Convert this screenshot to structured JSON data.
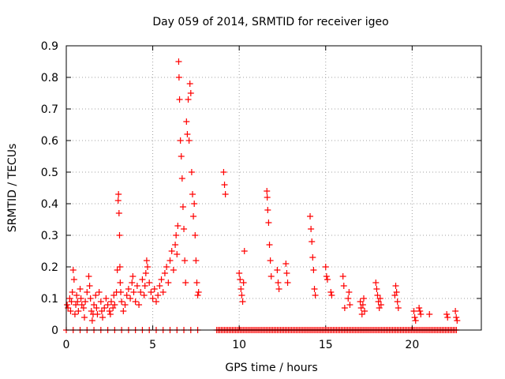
{
  "chart_data": {
    "type": "scatter",
    "title": "Day 059 of 2014, SRMTID for receiver igeo",
    "xlabel": "GPS time / hours",
    "ylabel": "SRMTID / TECUs",
    "xlim": [
      0,
      24
    ],
    "ylim": [
      0,
      0.9
    ],
    "xticks": [
      0,
      5,
      10,
      15,
      20
    ],
    "xtick_labels": [
      "0",
      "5",
      "10",
      "15",
      "20"
    ],
    "yticks": [
      0,
      0.1,
      0.2,
      0.3,
      0.4,
      0.5,
      0.6,
      0.7,
      0.8,
      0.9
    ],
    "ytick_labels": [
      "0",
      "0.1",
      "0.2",
      "0.3",
      "0.4",
      "0.5",
      "0.6",
      "0.7",
      "0.8",
      "0.9"
    ],
    "grid": true,
    "marker": "+",
    "color": "#ff0000",
    "series": [
      {
        "name": "SRMTID",
        "points": [
          [
            0.05,
            0.08
          ],
          [
            0.1,
            0.07
          ],
          [
            0.2,
            0.1
          ],
          [
            0.25,
            0.06
          ],
          [
            0.3,
            0.09
          ],
          [
            0.35,
            0.12
          ],
          [
            0.4,
            0.19
          ],
          [
            0.45,
            0.16
          ],
          [
            0.5,
            0.05
          ],
          [
            0.55,
            0.08
          ],
          [
            0.6,
            0.11
          ],
          [
            0.65,
            0.09
          ],
          [
            0.7,
            0.06
          ],
          [
            0.8,
            0.13
          ],
          [
            0.85,
            0.1
          ],
          [
            0.9,
            0.08
          ],
          [
            1.0,
            0.07
          ],
          [
            1.05,
            0.04
          ],
          [
            1.1,
            0.09
          ],
          [
            1.2,
            0.12
          ],
          [
            1.3,
            0.17
          ],
          [
            1.35,
            0.14
          ],
          [
            1.4,
            0.1
          ],
          [
            1.45,
            0.06
          ],
          [
            1.5,
            0.03
          ],
          [
            1.55,
            0.05
          ],
          [
            1.6,
            0.08
          ],
          [
            1.7,
            0.11
          ],
          [
            1.75,
            0.07
          ],
          [
            1.8,
            0.05
          ],
          [
            1.9,
            0.12
          ],
          [
            2.0,
            0.09
          ],
          [
            2.05,
            0.06
          ],
          [
            2.1,
            0.04
          ],
          [
            2.2,
            0.07
          ],
          [
            2.3,
            0.1
          ],
          [
            2.4,
            0.08
          ],
          [
            2.5,
            0.06
          ],
          [
            2.55,
            0.05
          ],
          [
            2.6,
            0.09
          ],
          [
            2.7,
            0.07
          ],
          [
            2.75,
            0.11
          ],
          [
            2.8,
            0.08
          ],
          [
            2.9,
            0.12
          ],
          [
            2.95,
            0.19
          ],
          [
            3.0,
            0.41
          ],
          [
            3.02,
            0.43
          ],
          [
            3.05,
            0.37
          ],
          [
            3.08,
            0.3
          ],
          [
            3.1,
            0.2
          ],
          [
            3.12,
            0.15
          ],
          [
            3.15,
            0.12
          ],
          [
            3.2,
            0.09
          ],
          [
            3.3,
            0.06
          ],
          [
            3.4,
            0.08
          ],
          [
            3.5,
            0.11
          ],
          [
            3.6,
            0.13
          ],
          [
            3.7,
            0.1
          ],
          [
            3.8,
            0.15
          ],
          [
            3.85,
            0.17
          ],
          [
            3.9,
            0.12
          ],
          [
            4.0,
            0.09
          ],
          [
            4.1,
            0.14
          ],
          [
            4.2,
            0.08
          ],
          [
            4.3,
            0.12
          ],
          [
            4.4,
            0.16
          ],
          [
            4.5,
            0.11
          ],
          [
            4.55,
            0.14
          ],
          [
            4.6,
            0.18
          ],
          [
            4.65,
            0.22
          ],
          [
            4.7,
            0.2
          ],
          [
            4.8,
            0.15
          ],
          [
            4.9,
            0.12
          ],
          [
            5.0,
            0.1
          ],
          [
            5.1,
            0.13
          ],
          [
            5.2,
            0.09
          ],
          [
            5.3,
            0.11
          ],
          [
            5.4,
            0.14
          ],
          [
            5.5,
            0.16
          ],
          [
            5.6,
            0.12
          ],
          [
            5.7,
            0.18
          ],
          [
            5.8,
            0.2
          ],
          [
            5.9,
            0.15
          ],
          [
            6.0,
            0.22
          ],
          [
            6.1,
            0.25
          ],
          [
            6.2,
            0.19
          ],
          [
            6.3,
            0.27
          ],
          [
            6.35,
            0.3
          ],
          [
            6.4,
            0.24
          ],
          [
            6.45,
            0.33
          ],
          [
            6.5,
            0.85
          ],
          [
            6.52,
            0.8
          ],
          [
            6.55,
            0.73
          ],
          [
            6.6,
            0.6
          ],
          [
            6.65,
            0.55
          ],
          [
            6.7,
            0.48
          ],
          [
            6.75,
            0.39
          ],
          [
            6.8,
            0.32
          ],
          [
            6.85,
            0.22
          ],
          [
            6.9,
            0.15
          ],
          [
            6.95,
            0.66
          ],
          [
            7.0,
            0.62
          ],
          [
            7.05,
            0.73
          ],
          [
            7.1,
            0.6
          ],
          [
            7.15,
            0.78
          ],
          [
            7.2,
            0.75
          ],
          [
            7.25,
            0.5
          ],
          [
            7.3,
            0.43
          ],
          [
            7.35,
            0.36
          ],
          [
            7.4,
            0.4
          ],
          [
            7.45,
            0.3
          ],
          [
            7.5,
            0.22
          ],
          [
            7.55,
            0.15
          ],
          [
            7.6,
            0.11
          ],
          [
            7.65,
            0.12
          ],
          [
            9.1,
            0.5
          ],
          [
            9.15,
            0.46
          ],
          [
            9.2,
            0.43
          ],
          [
            10.0,
            0.18
          ],
          [
            10.05,
            0.16
          ],
          [
            10.1,
            0.13
          ],
          [
            10.15,
            0.11
          ],
          [
            10.2,
            0.09
          ],
          [
            10.25,
            0.15
          ],
          [
            10.3,
            0.25
          ],
          [
            11.6,
            0.44
          ],
          [
            11.62,
            0.42
          ],
          [
            11.65,
            0.38
          ],
          [
            11.7,
            0.34
          ],
          [
            11.75,
            0.27
          ],
          [
            11.8,
            0.22
          ],
          [
            11.85,
            0.17
          ],
          [
            12.2,
            0.19
          ],
          [
            12.25,
            0.15
          ],
          [
            12.3,
            0.13
          ],
          [
            12.7,
            0.21
          ],
          [
            12.75,
            0.18
          ],
          [
            12.8,
            0.15
          ],
          [
            14.1,
            0.36
          ],
          [
            14.15,
            0.32
          ],
          [
            14.2,
            0.28
          ],
          [
            14.25,
            0.23
          ],
          [
            14.3,
            0.19
          ],
          [
            14.35,
            0.13
          ],
          [
            14.4,
            0.11
          ],
          [
            15.0,
            0.2
          ],
          [
            15.05,
            0.17
          ],
          [
            15.1,
            0.16
          ],
          [
            15.3,
            0.12
          ],
          [
            15.35,
            0.11
          ],
          [
            16.0,
            0.17
          ],
          [
            16.05,
            0.14
          ],
          [
            16.1,
            0.07
          ],
          [
            16.3,
            0.1
          ],
          [
            16.35,
            0.12
          ],
          [
            16.4,
            0.08
          ],
          [
            17.0,
            0.09
          ],
          [
            17.05,
            0.07
          ],
          [
            17.1,
            0.05
          ],
          [
            17.15,
            0.08
          ],
          [
            17.2,
            0.1
          ],
          [
            17.25,
            0.06
          ],
          [
            17.9,
            0.15
          ],
          [
            17.95,
            0.13
          ],
          [
            18.0,
            0.11
          ],
          [
            18.05,
            0.09
          ],
          [
            18.1,
            0.07
          ],
          [
            18.15,
            0.1
          ],
          [
            18.2,
            0.08
          ],
          [
            19.0,
            0.11
          ],
          [
            19.05,
            0.14
          ],
          [
            19.1,
            0.12
          ],
          [
            19.15,
            0.09
          ],
          [
            19.2,
            0.07
          ],
          [
            20.1,
            0.06
          ],
          [
            20.15,
            0.04
          ],
          [
            20.2,
            0.03
          ],
          [
            20.4,
            0.07
          ],
          [
            20.45,
            0.06
          ],
          [
            20.5,
            0.05
          ],
          [
            21.0,
            0.05
          ],
          [
            22.0,
            0.05
          ],
          [
            22.05,
            0.04
          ],
          [
            22.5,
            0.06
          ],
          [
            22.55,
            0.04
          ],
          [
            22.6,
            0.03
          ]
        ],
        "zero_segments": [
          [
            0.0,
            7.7
          ],
          [
            8.7,
            22.6
          ]
        ],
        "zero_density": "sparse until 7.7 h, continuous from 8.7 to 22.6 h"
      }
    ]
  }
}
